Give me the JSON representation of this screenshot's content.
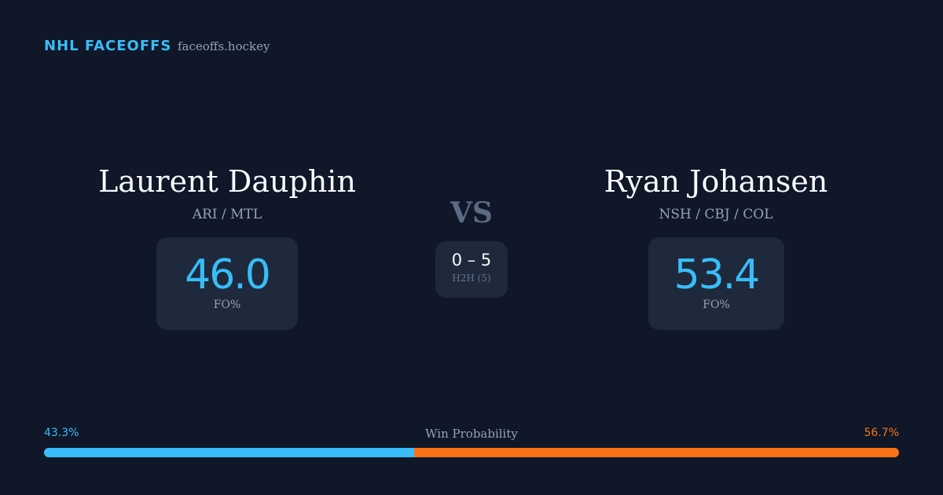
{
  "header": {
    "brand": "NHL FACEOFFS",
    "site": "faceoffs.hockey"
  },
  "players": [
    {
      "name": "Laurent Dauphin",
      "teams": "ARI / MTL",
      "fo_pct": "46.0",
      "fo_label": "FO%"
    },
    {
      "name": "Ryan Johansen",
      "teams": "NSH / CBJ / COL",
      "fo_pct": "53.4",
      "fo_label": "FO%"
    }
  ],
  "versus": {
    "label": "VS",
    "score": "0 – 5",
    "record_label": "H2H (5)"
  },
  "win_probability": {
    "title": "Win Probability",
    "values": [
      43.3,
      56.7
    ],
    "value_labels": [
      "43.3%",
      "56.7%"
    ],
    "colors": [
      "#38bdf8",
      "#f97316"
    ]
  }
}
